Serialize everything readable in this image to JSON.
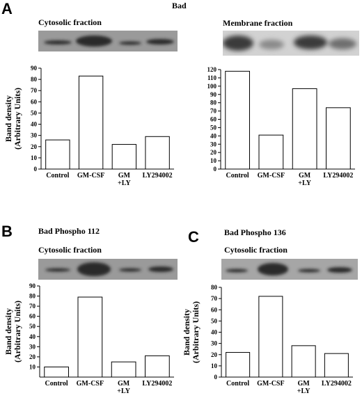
{
  "figure": {
    "panel_a_letter": "A",
    "panel_b_letter": "B",
    "panel_c_letter": "C",
    "panel_a_title": "Bad",
    "panel_b_title": "Bad Phospho 112",
    "panel_c_title": "Bad Phospho 136",
    "a_left_fraction": "Cytosolic fraction",
    "a_right_fraction": "Membrane fraction",
    "b_fraction": "Cytosolic fraction",
    "c_fraction": "Cytosolic fraction",
    "blot_color": "#2a2a2a",
    "blot_background": "#8c8c8c"
  },
  "chart_data": [
    {
      "id": "A-cytosolic",
      "type": "bar",
      "categories": [
        "Control",
        "GM-CSF",
        "GM\n+LY",
        "LY294002"
      ],
      "values": [
        26,
        83,
        22,
        29
      ],
      "ylabel": "Band density\n(Arbitrary Units)",
      "ylim": [
        0,
        90
      ],
      "yticks": [
        0,
        10,
        20,
        30,
        40,
        50,
        60,
        70,
        80,
        90
      ],
      "grid": false
    },
    {
      "id": "A-membrane",
      "type": "bar",
      "categories": [
        "Control",
        "GM-CSF",
        "GM\n+LY",
        "LY294002"
      ],
      "values": [
        118,
        41,
        97,
        74
      ],
      "ylabel": "",
      "ylim": [
        0,
        120
      ],
      "yticks": [
        0,
        10,
        20,
        30,
        40,
        50,
        60,
        70,
        80,
        90,
        100,
        110,
        120
      ],
      "grid": false
    },
    {
      "id": "B-cytosolic",
      "type": "bar",
      "categories": [
        "Control",
        "GM-CSF",
        "GM\n+LY",
        "LY294002"
      ],
      "values": [
        10,
        79,
        15,
        21
      ],
      "ylabel": "Band density\n(Arbitrary Units)",
      "ylim": [
        0,
        90
      ],
      "yticks": [
        10,
        20,
        30,
        40,
        50,
        60,
        70,
        80,
        90
      ],
      "grid": false
    },
    {
      "id": "C-cytosolic",
      "type": "bar",
      "categories": [
        "Control",
        "GM-CSF",
        "GM\n+LY",
        "LY294002"
      ],
      "values": [
        22,
        72,
        28,
        21
      ],
      "ylabel": "Band density\n(Arbitrary Units)",
      "ylim": [
        0,
        80
      ],
      "yticks": [
        0,
        10,
        20,
        30,
        40,
        50,
        60,
        70,
        80
      ],
      "grid": false
    }
  ]
}
